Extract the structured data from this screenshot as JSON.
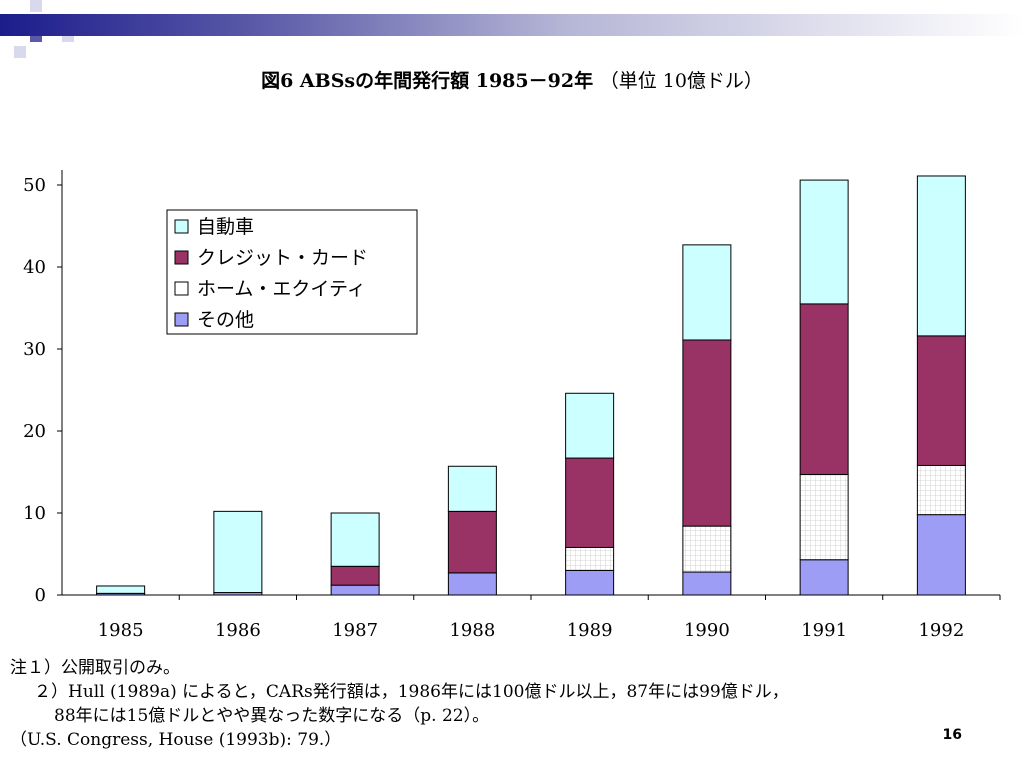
{
  "title": {
    "main": "図6 ABSsの年間発行額 1985－92年",
    "unit": "（単位 10億ドル）"
  },
  "chart_data": {
    "type": "bar",
    "stacked": true,
    "categories": [
      "1985",
      "1986",
      "1987",
      "1988",
      "1989",
      "1990",
      "1991",
      "1992"
    ],
    "series": [
      {
        "name": "その他",
        "color": "#9d9df5",
        "pattern": "solid",
        "values": [
          0.2,
          0.3,
          1.2,
          2.7,
          3.0,
          2.8,
          4.3,
          9.8
        ]
      },
      {
        "name": "ホーム・エクイティ",
        "color": "#ffffff",
        "pattern": "grid",
        "values": [
          0,
          0,
          0,
          0,
          2.8,
          5.6,
          10.4,
          6.0
        ]
      },
      {
        "name": "クレジット・カード",
        "color": "#993366",
        "pattern": "solid",
        "values": [
          0,
          0,
          2.3,
          7.5,
          10.9,
          22.7,
          20.8,
          15.8
        ]
      },
      {
        "name": "自動車",
        "color": "#ccffff",
        "pattern": "solid",
        "values": [
          0.9,
          9.9,
          6.5,
          5.5,
          7.9,
          11.6,
          15.1,
          19.5
        ]
      }
    ],
    "legend_order": [
      "自動車",
      "クレジット・カード",
      "ホーム・エクイティ",
      "その他"
    ],
    "legend_position": "top-left",
    "yticks": [
      "0",
      "10",
      "20",
      "30",
      "40",
      "50"
    ],
    "ylim": [
      0,
      52
    ],
    "grid": false
  },
  "notes": [
    "注１）公開取引のみ。",
    "２）Hull (1989a) によると，CARs発行額は，1986年には100億ドル以上，87年には99億ドル，",
    "88年には15億ドルとやや異なった数字になる（p. 22）。",
    "（U.S. Congress, House (1993b): 79.）"
  ],
  "page_number": "16"
}
